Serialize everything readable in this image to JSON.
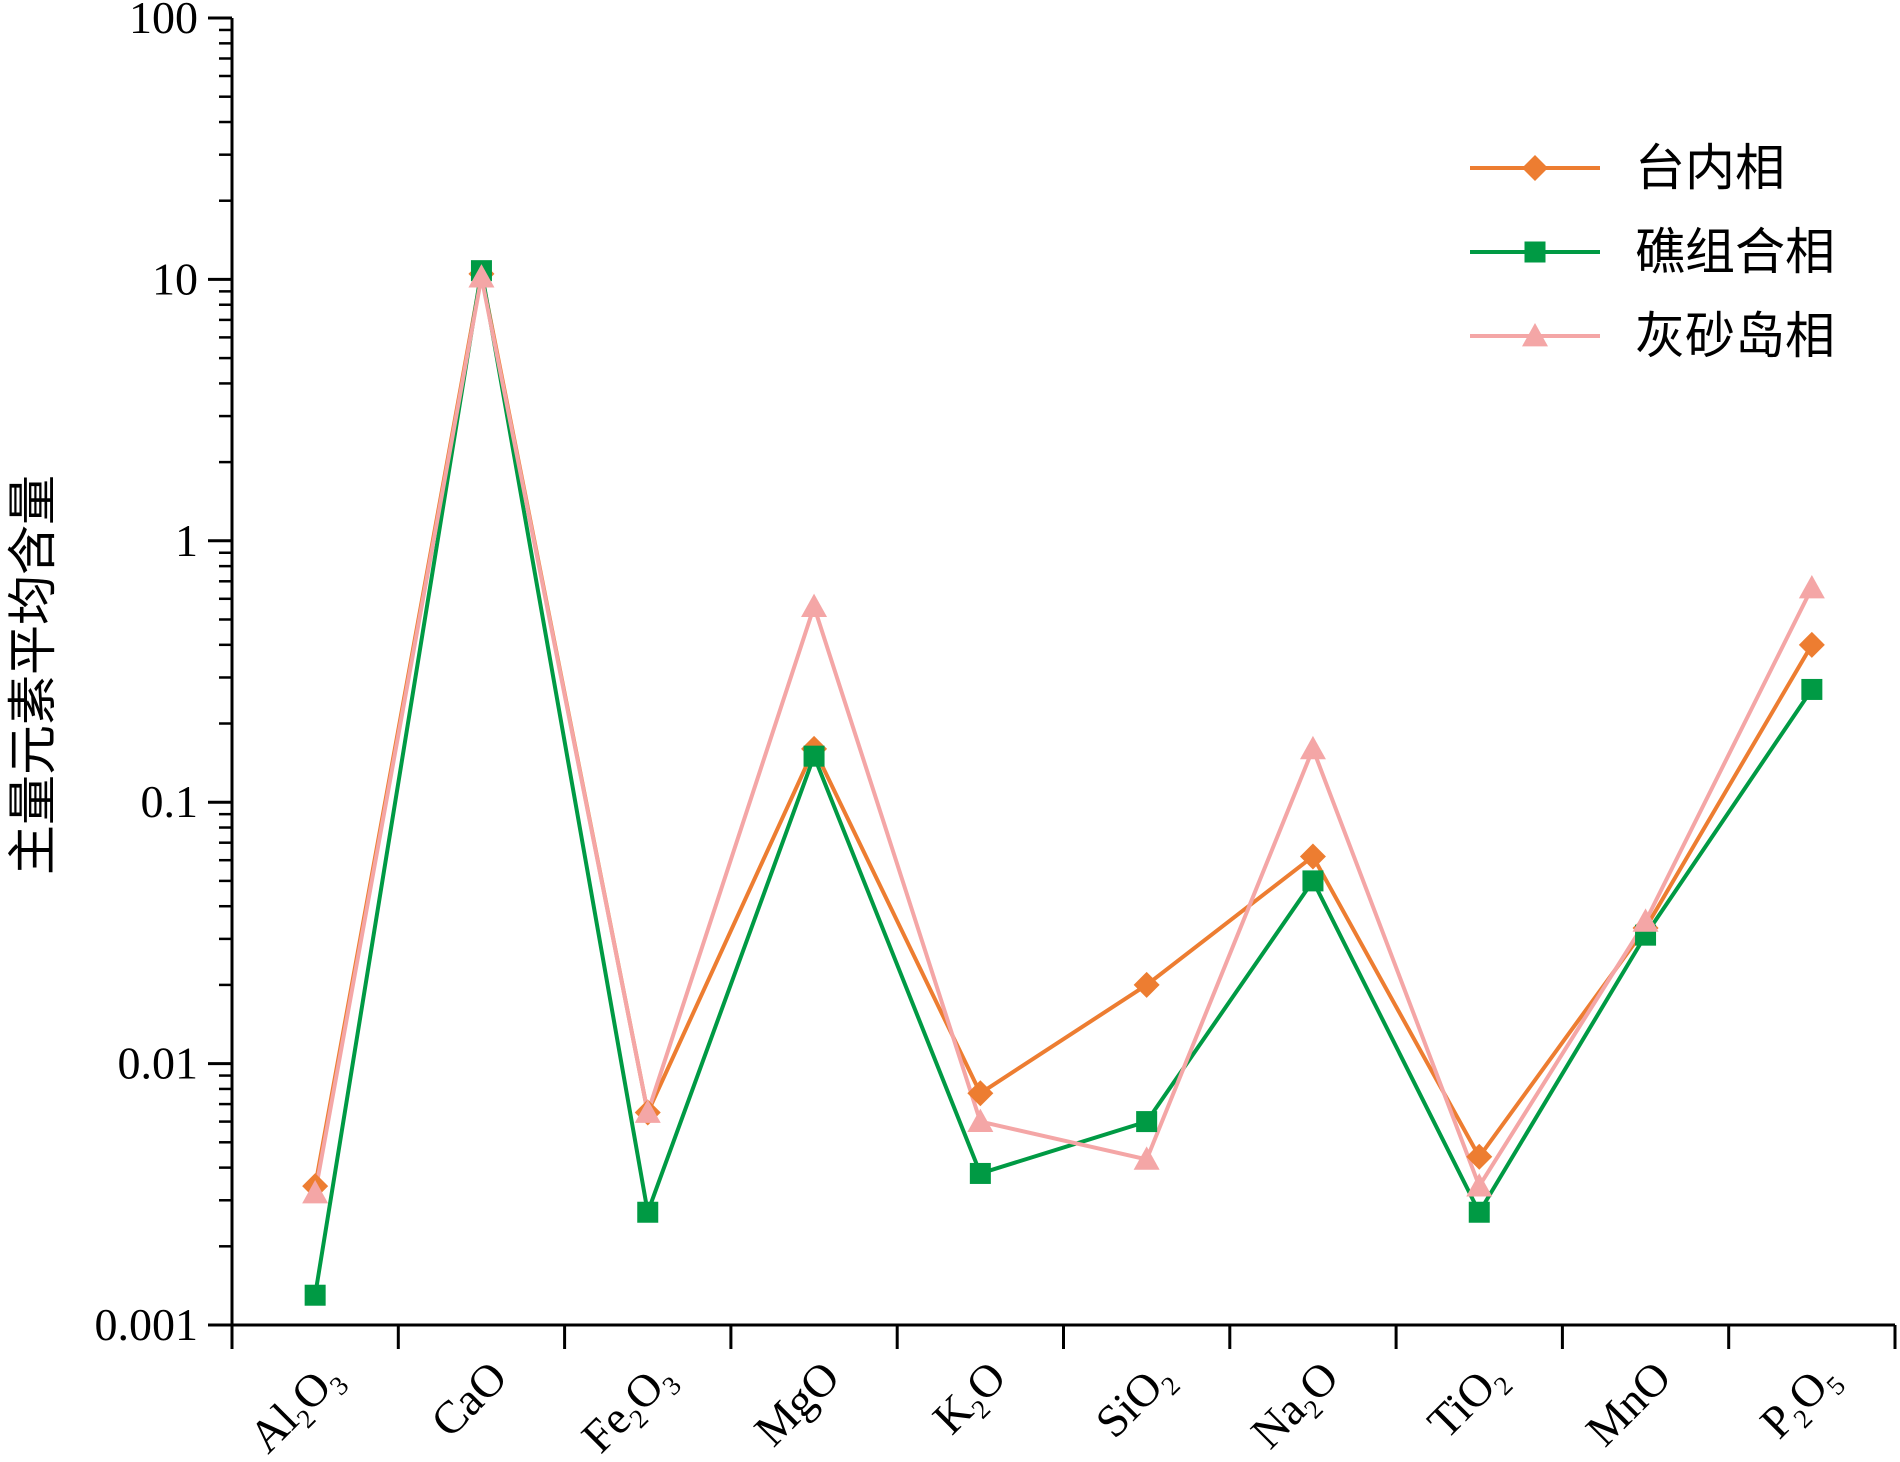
{
  "chart_data": {
    "type": "line",
    "ylabel": "主量元素平均含量",
    "xlabel": "",
    "yscale": "log",
    "ylim": [
      0.001,
      100
    ],
    "ytick_labels": [
      "0.001",
      "0.01",
      "0.1",
      "1",
      "10",
      "100"
    ],
    "yticks": [
      0.001,
      0.01,
      0.1,
      1,
      10,
      100
    ],
    "categories": [
      {
        "base": "Al",
        "sub1": "2",
        "mid": "O",
        "sub2": "3"
      },
      {
        "base": "CaO",
        "sub1": "",
        "mid": "",
        "sub2": ""
      },
      {
        "base": "Fe",
        "sub1": "2",
        "mid": "O",
        "sub2": "3"
      },
      {
        "base": "MgO",
        "sub1": "",
        "mid": "",
        "sub2": ""
      },
      {
        "base": "K",
        "sub1": "2",
        "mid": "O",
        "sub2": ""
      },
      {
        "base": "SiO",
        "sub1": "2",
        "mid": "",
        "sub2": ""
      },
      {
        "base": "Na",
        "sub1": "2",
        "mid": "O",
        "sub2": ""
      },
      {
        "base": "TiO",
        "sub1": "2",
        "mid": "",
        "sub2": ""
      },
      {
        "base": "MnO",
        "sub1": "",
        "mid": "",
        "sub2": ""
      },
      {
        "base": "P",
        "sub1": "2",
        "mid": "O",
        "sub2": "5"
      }
    ],
    "series": [
      {
        "name": "台内相",
        "color": "#ED7D31",
        "marker": "diamond",
        "values": [
          0.0034,
          10.5,
          0.0065,
          0.16,
          0.0077,
          0.02,
          0.062,
          0.0044,
          0.033,
          0.4
        ]
      },
      {
        "name": "礁组合相",
        "color": "#009A44",
        "marker": "square",
        "values": [
          0.0013,
          10.8,
          0.0027,
          0.15,
          0.0038,
          0.006,
          0.05,
          0.0027,
          0.031,
          0.27
        ]
      },
      {
        "name": "灰砂岛相",
        "color": "#F4A6A6",
        "marker": "triangle",
        "values": [
          0.0032,
          10.2,
          0.0065,
          0.56,
          0.006,
          0.0043,
          0.16,
          0.0034,
          0.035,
          0.66
        ]
      }
    ],
    "legend_position": "top-right",
    "grid": false
  }
}
